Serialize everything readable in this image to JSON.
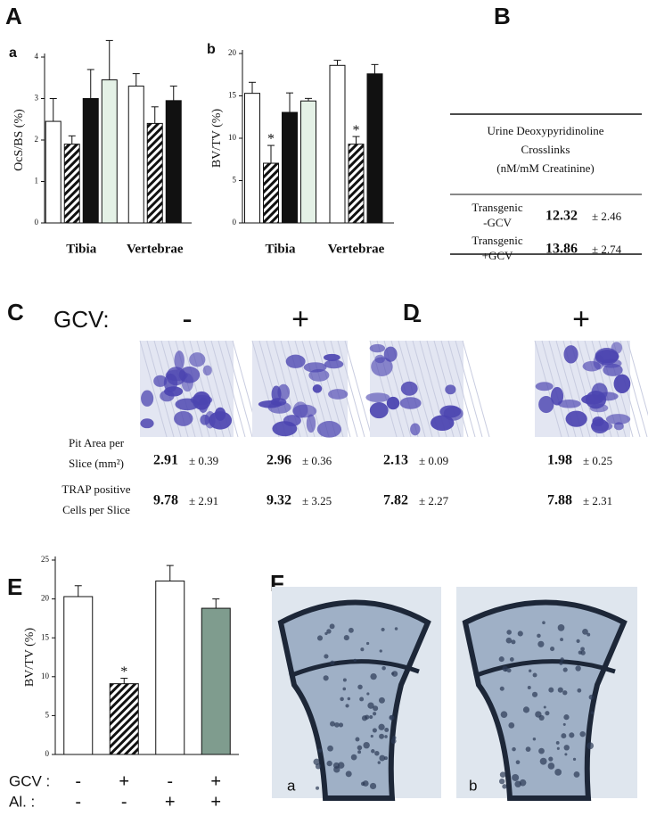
{
  "panel_labels": [
    "A",
    "B",
    "C",
    "D",
    "E",
    "F"
  ],
  "chart_data": [
    {
      "type": "bar",
      "panel": "a",
      "ylabel": "OcS/BS (%)",
      "categories": [
        "Tibia",
        "Vertebrae"
      ],
      "ylim": [
        0,
        4
      ],
      "yticks": [
        0,
        1,
        2,
        3,
        4
      ],
      "series": [
        {
          "color": "#ffffff",
          "values": [
            2.45,
            3.3
          ],
          "errors": [
            0.55,
            0.3
          ]
        },
        {
          "color": "#ffffff",
          "hatch": true,
          "values": [
            1.9,
            2.4
          ],
          "errors": [
            0.2,
            0.4
          ]
        },
        {
          "color": "#111111",
          "values": [
            3.0,
            2.95
          ],
          "errors": [
            0.7,
            0.35
          ]
        },
        {
          "color": "#e4f1e6",
          "values": [
            3.45,
            null
          ],
          "errors": [
            0.95,
            null
          ]
        }
      ]
    },
    {
      "type": "bar",
      "panel": "b",
      "ylabel": "BV/TV (%)",
      "categories": [
        "Tibia",
        "Vertebrae"
      ],
      "ylim": [
        0,
        20
      ],
      "yticks": [
        0,
        5,
        10,
        15,
        20
      ],
      "series": [
        {
          "color": "#ffffff",
          "values": [
            15.3,
            18.6
          ],
          "errors": [
            1.3,
            0.6
          ]
        },
        {
          "color": "#ffffff",
          "hatch": true,
          "values": [
            7.05,
            9.3
          ],
          "errors": [
            2.1,
            0.9
          ],
          "annotations": [
            "*",
            "*"
          ]
        },
        {
          "color": "#111111",
          "values": [
            13.05,
            17.6
          ],
          "errors": [
            2.3,
            1.1
          ]
        },
        {
          "color": "#e4f1e6",
          "values": [
            14.4,
            null
          ],
          "errors": [
            0.3,
            null
          ]
        }
      ]
    },
    {
      "type": "bar",
      "ylabel": "BV/TV (%)",
      "ylim": [
        0,
        25
      ],
      "yticks": [
        0,
        5,
        10,
        15,
        20,
        25
      ],
      "values": [
        20.3,
        9.1,
        22.3,
        18.8
      ],
      "errors": [
        1.4,
        0.7,
        2.0,
        1.2
      ],
      "colors": [
        "#ffffff",
        "#ffffff",
        "#ffffff",
        "#7f9c8e"
      ],
      "hatch": [
        false,
        true,
        false,
        false
      ],
      "annotations": [
        null,
        "*",
        null,
        null
      ],
      "conditions": [
        {
          "label": "GCV :",
          "values": [
            "-",
            "+",
            "-",
            "+"
          ]
        },
        {
          "label": "Al. :",
          "values": [
            "-",
            "-",
            "+",
            "+"
          ]
        }
      ]
    }
  ],
  "table": {
    "header": [
      "Urine Deoxypyridinoline",
      "Crosslinks",
      "(nM/mM Creatinine)"
    ],
    "rows": [
      {
        "label": [
          "Transgenic",
          "-GCV"
        ],
        "value": "12.32",
        "sd": "± 2.46"
      },
      {
        "label": [
          "Transgenic",
          "+GCV"
        ],
        "value": "13.86",
        "sd": "± 2.74"
      }
    ]
  },
  "resorption": {
    "condition_label": "GCV:",
    "row_labels": [
      [
        "Pit Area per",
        "Slice (mm²)"
      ],
      [
        "TRAP positive",
        "Cells per Slice"
      ]
    ],
    "groups": [
      {
        "signs": [
          "-",
          "+"
        ],
        "pit_area": [
          {
            "value": "2.91",
            "sd": "± 0.39"
          },
          {
            "value": "2.96",
            "sd": "± 0.36"
          }
        ],
        "trap": [
          {
            "value": "9.78",
            "sd": "± 2.91"
          },
          {
            "value": "9.32",
            "sd": "± 3.25"
          }
        ]
      },
      {
        "signs": [
          "-",
          "+"
        ],
        "pit_area": [
          {
            "value": "2.13",
            "sd": "± 0.09"
          },
          {
            "value": "1.98",
            "sd": "± 0.25"
          }
        ],
        "trap": [
          {
            "value": "7.82",
            "sd": "± 2.27"
          },
          {
            "value": "7.88",
            "sd": "± 2.31"
          }
        ]
      }
    ]
  },
  "histology": {
    "labels": [
      "a",
      "b"
    ]
  }
}
